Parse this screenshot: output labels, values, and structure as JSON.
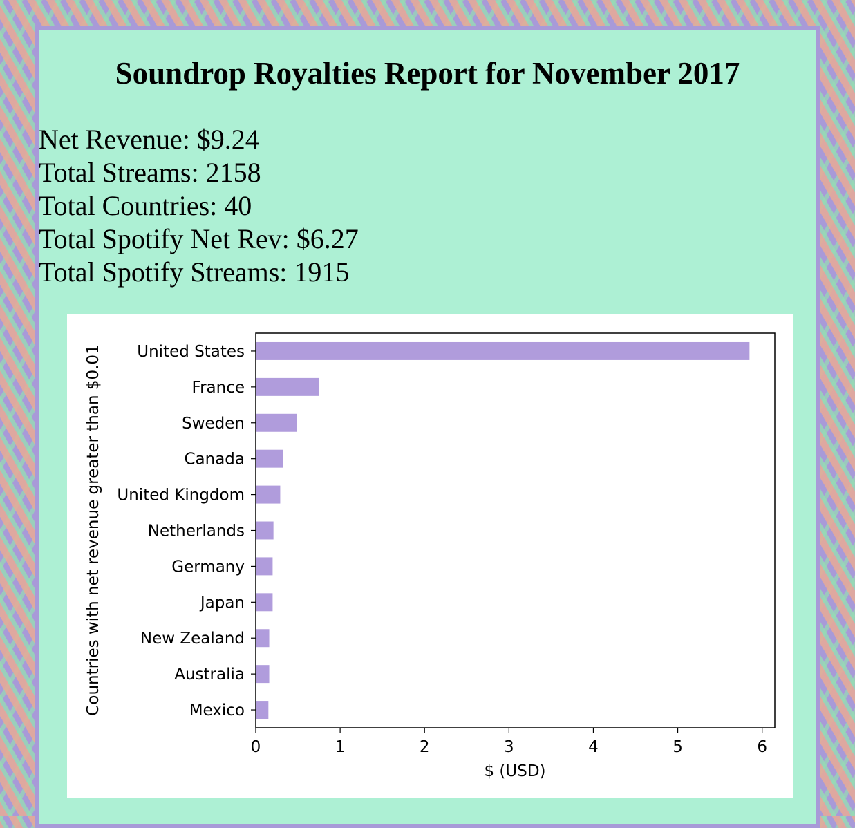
{
  "report": {
    "title": "Soundrop Royalties Report for November 2017",
    "stats": [
      "Net Revenue: $9.24",
      "Total Streams: 2158",
      "Total Countries: 40",
      "Total Spotify Net Rev: $6.27",
      "Total Spotify Streams: 1915"
    ]
  },
  "chart_data": {
    "type": "bar",
    "orientation": "horizontal",
    "categories": [
      "United States",
      "France",
      "Sweden",
      "Canada",
      "United Kingdom",
      "Netherlands",
      "Germany",
      "Japan",
      "New Zealand",
      "Australia",
      "Mexico"
    ],
    "values": [
      5.85,
      0.75,
      0.49,
      0.32,
      0.29,
      0.21,
      0.2,
      0.2,
      0.16,
      0.16,
      0.15
    ],
    "xlabel": "$ (USD)",
    "ylabel": "Countries with net revenue greater than $0.01",
    "xlim": [
      0,
      6.15
    ],
    "xticks": [
      0,
      1,
      2,
      3,
      4,
      5,
      6
    ],
    "grid": false,
    "bar_color": "#b09cdc"
  }
}
